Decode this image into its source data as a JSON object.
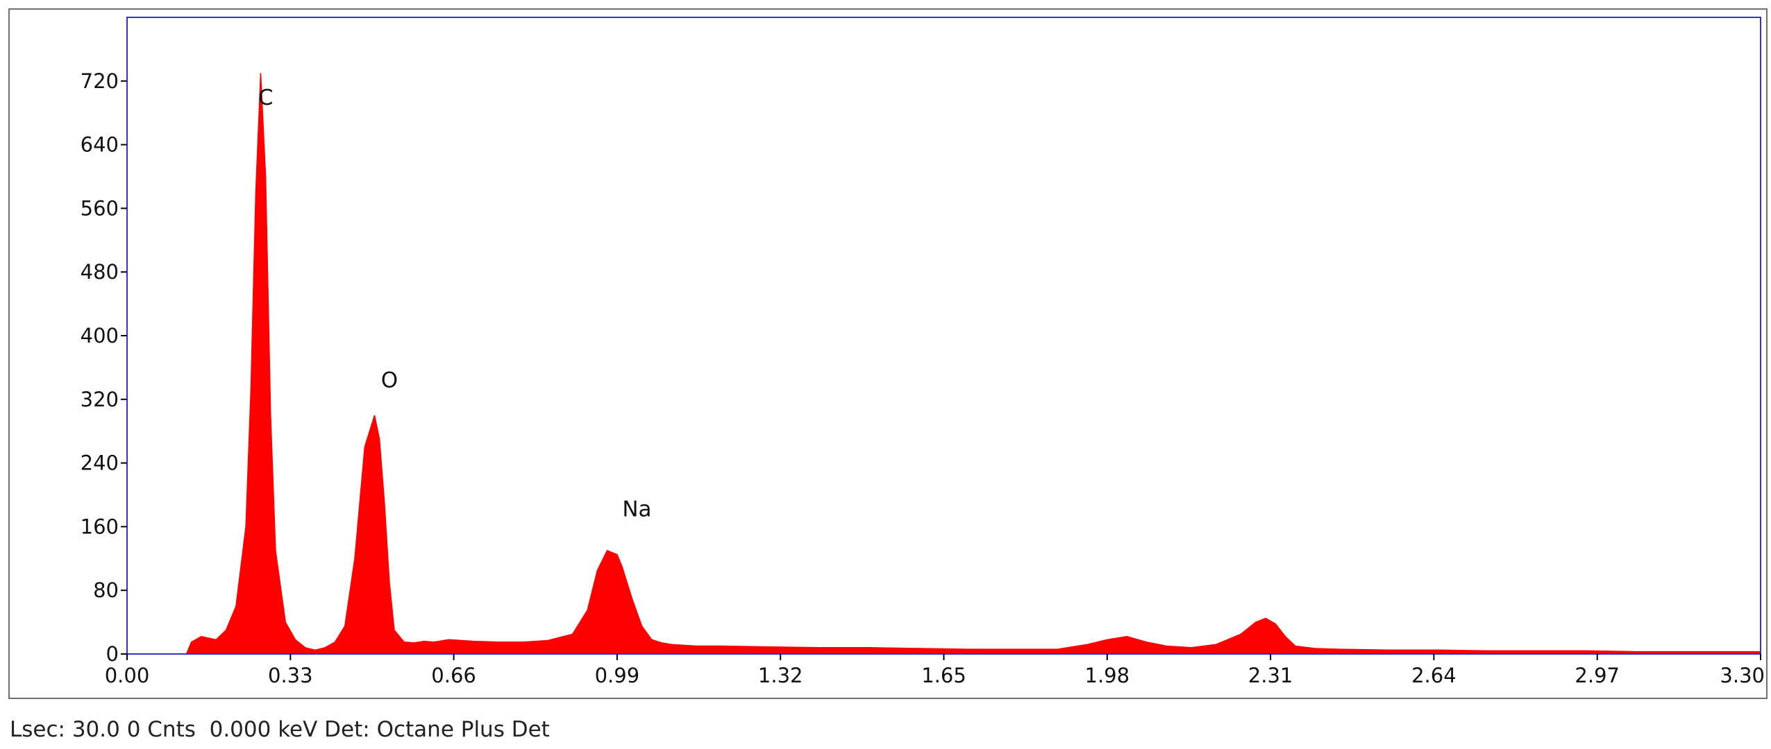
{
  "status_bar": {
    "text": "Lsec: 30.0 0 Cnts  0.000 keV Det: Octane Plus Det"
  },
  "colors": {
    "spectrum": "#ff0000",
    "plot_border": "#3333cc",
    "frame_border": "#6f6f6f",
    "axis": "#000000"
  },
  "chart_data": {
    "type": "area",
    "title": "",
    "xlabel": "",
    "ylabel": "",
    "xlim": [
      0.0,
      3.3
    ],
    "ylim": [
      0,
      800
    ],
    "x_ticks": [
      "0.00",
      "0.33",
      "0.66",
      "0.99",
      "1.32",
      "1.65",
      "1.98",
      "2.31",
      "2.64",
      "2.97",
      "3.30"
    ],
    "y_ticks": [
      "0",
      "80",
      "160",
      "240",
      "320",
      "400",
      "480",
      "560",
      "640",
      "720"
    ],
    "grid": false,
    "legend": "none",
    "series": [
      {
        "x": [
          0.12,
          0.13,
          0.15,
          0.18,
          0.2,
          0.22,
          0.24,
          0.25,
          0.26,
          0.27,
          0.28,
          0.29,
          0.3,
          0.32,
          0.34,
          0.36,
          0.38,
          0.4,
          0.42,
          0.44,
          0.46,
          0.48,
          0.5,
          0.51,
          0.52,
          0.53,
          0.54,
          0.56,
          0.58,
          0.6,
          0.62,
          0.65,
          0.7,
          0.75,
          0.8,
          0.85,
          0.9,
          0.93,
          0.95,
          0.97,
          0.99,
          1.0,
          1.02,
          1.04,
          1.06,
          1.08,
          1.1,
          1.15,
          1.2,
          1.3,
          1.4,
          1.5,
          1.6,
          1.7,
          1.8,
          1.88,
          1.94,
          1.98,
          2.02,
          2.06,
          2.1,
          2.15,
          2.2,
          2.25,
          2.28,
          2.3,
          2.32,
          2.34,
          2.36,
          2.4,
          2.45,
          2.55,
          2.65,
          2.75,
          2.85,
          2.95,
          3.05,
          3.15,
          3.25,
          3.3
        ],
        "y": [
          0,
          15,
          22,
          18,
          30,
          60,
          160,
          330,
          580,
          730,
          600,
          300,
          130,
          40,
          18,
          8,
          5,
          8,
          15,
          35,
          120,
          260,
          300,
          270,
          190,
          90,
          30,
          15,
          14,
          16,
          15,
          18,
          16,
          15,
          15,
          17,
          25,
          55,
          105,
          130,
          125,
          110,
          70,
          35,
          18,
          14,
          12,
          10,
          10,
          9,
          8,
          8,
          7,
          6,
          6,
          6,
          12,
          18,
          22,
          15,
          10,
          8,
          12,
          25,
          40,
          45,
          38,
          22,
          10,
          7,
          6,
          5,
          5,
          4,
          4,
          4,
          3,
          3,
          3,
          3
        ]
      }
    ],
    "annotations": [
      {
        "text": "C",
        "x": 0.28,
        "y": 690
      },
      {
        "text": "O",
        "x": 0.53,
        "y": 335
      },
      {
        "text": "Na",
        "x": 1.03,
        "y": 173
      }
    ]
  }
}
